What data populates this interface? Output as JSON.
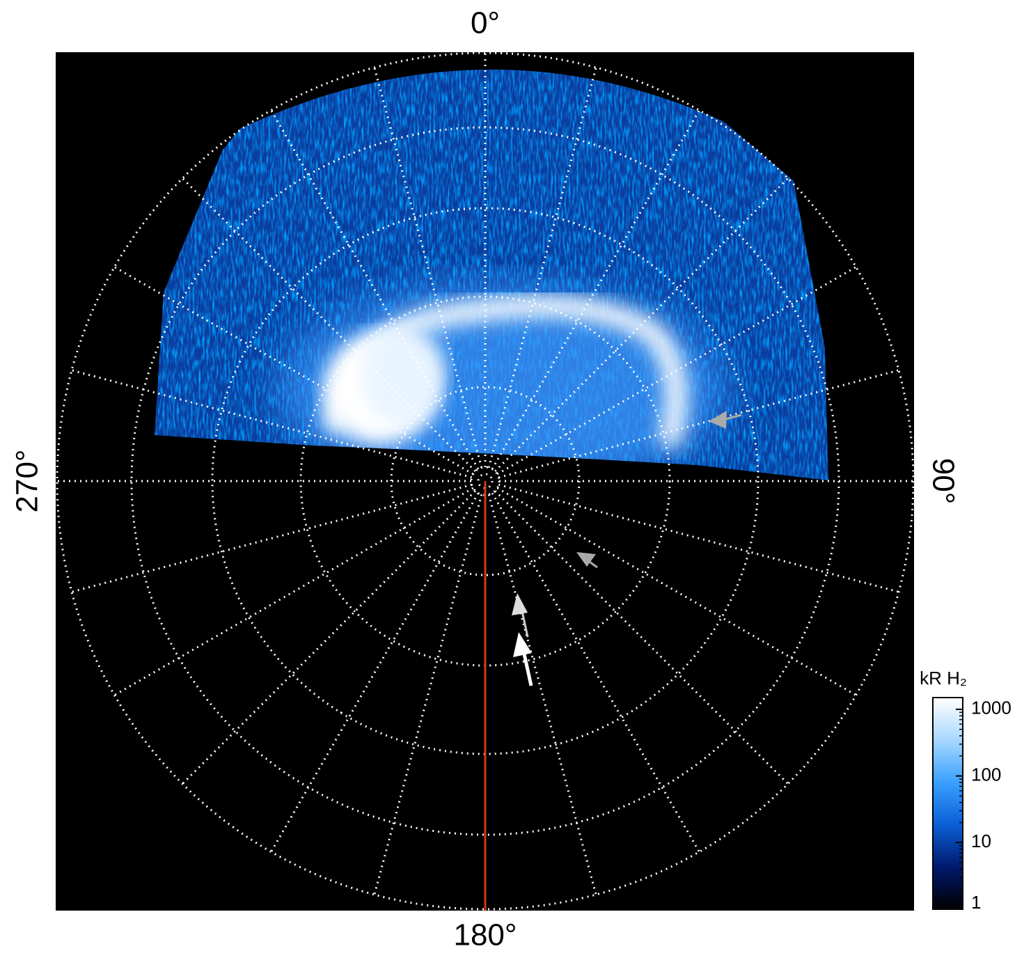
{
  "chart_data": {
    "type": "polar-image",
    "angle_ticks": [
      {
        "value": 0,
        "label": "0°"
      },
      {
        "value": 90,
        "label": "90°"
      },
      {
        "value": 180,
        "label": "180°"
      },
      {
        "value": 270,
        "label": "270°"
      }
    ],
    "colorbar": {
      "label": "kR H₂",
      "log": true,
      "clim": [
        1,
        1500
      ],
      "cticks": [
        1,
        10,
        100,
        1000
      ],
      "colors": [
        "#000000",
        "#001a6e",
        "#0a5fd6",
        "#3aa0ff",
        "#a8d8ff",
        "#ffffff"
      ]
    }
  }
}
